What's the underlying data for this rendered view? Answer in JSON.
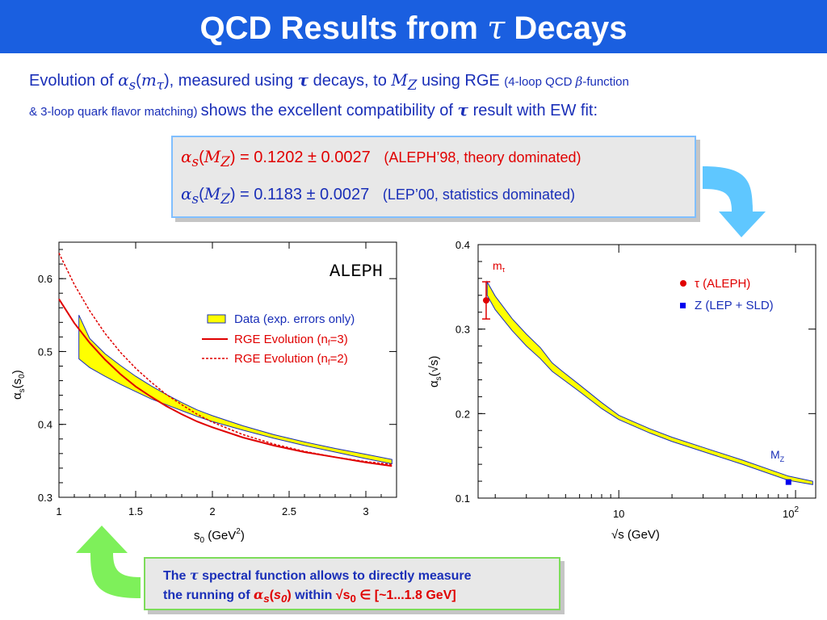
{
  "title": {
    "prefix": "QCD Results from ",
    "symbol": "τ",
    "suffix": " Decays"
  },
  "intro": {
    "t1": "Evolution of ",
    "t2": "α",
    "t3": "s",
    "t4": "(",
    "t5": "m",
    "t6": "τ",
    "t7": "), measured using ",
    "t8": "τ",
    "t9": " decays, to ",
    "t10": "M",
    "t11": "Z",
    "t12": " using RGE ",
    "t13": "(4-loop QCD ",
    "t14": "β",
    "t15": "-function",
    "t16": "& 3-loop quark flavor matching) ",
    "t17": "shows the excellent compatibility of ",
    "t18": "τ",
    "t19": " result with EW fit:"
  },
  "results": {
    "r1_a": "α",
    "r1_s": "s",
    "r1_open": "(",
    "r1_m": "M",
    "r1_z": "Z",
    "r1_value": ") = 0.1202 ± 0.0027",
    "r1_note": "(ALEPH’98, theory dominated)",
    "r2_a": "α",
    "r2_s": "s",
    "r2_open": "(",
    "r2_m": "M",
    "r2_z": "Z",
    "r2_value": ") = 0.1183 ± 0.0027",
    "r2_note": "(LEP’00, statistics dominated)"
  },
  "callout": {
    "l1a": "The ",
    "l1b": "τ",
    "l1c": " spectral function allows to directly measure",
    "l2a": "the running of ",
    "l2b": "α",
    "l2c": "s",
    "l2d": "(",
    "l2e": "s",
    "l2f": "0",
    "l2g": ")",
    "l2h": " within ",
    "l2i": "√s",
    "l2j": "0",
    "l2k": " ∈ [~1...1.8 GeV]"
  },
  "colors": {
    "title_bar": "#1a5fe0",
    "text_blue": "#1a2fb8",
    "text_red": "#e00000",
    "band_fill": "#ffff00",
    "curve_red": "#e00000",
    "arrow_blue": "#5fc7ff",
    "arrow_green": "#7ef05a",
    "box_border_blue": "#80bfff",
    "box_border_green": "#7ddc5a"
  },
  "chart_data": [
    {
      "type": "line",
      "experiment_label": "ALEPH",
      "xlabel": "s0 (GeV²)",
      "ylabel": "αs(s0)",
      "xlim": [
        1.0,
        3.2
      ],
      "ylim": [
        0.3,
        0.65
      ],
      "xticks": [
        "1",
        "1.5",
        "2",
        "2.5",
        "3"
      ],
      "yticks": [
        "0.3",
        "0.4",
        "0.5",
        "0.6"
      ],
      "legend": [
        "Data (exp. errors only)",
        "RGE Evolution (nf=3)",
        "RGE Evolution (nf=2)"
      ],
      "legend_position": "right",
      "series": [
        {
          "name": "Data (exp. errors only)",
          "style": "band",
          "x": [
            1.13,
            1.2,
            1.3,
            1.4,
            1.5,
            1.6,
            1.7,
            1.8,
            1.9,
            2.0,
            2.2,
            2.4,
            2.6,
            2.8,
            3.0,
            3.17
          ],
          "y_upper": [
            0.55,
            0.518,
            0.497,
            0.481,
            0.466,
            0.453,
            0.441,
            0.43,
            0.42,
            0.412,
            0.398,
            0.386,
            0.376,
            0.367,
            0.359,
            0.352
          ],
          "y_lower": [
            0.49,
            0.478,
            0.466,
            0.455,
            0.445,
            0.435,
            0.427,
            0.419,
            0.411,
            0.404,
            0.392,
            0.381,
            0.371,
            0.362,
            0.353,
            0.346
          ]
        },
        {
          "name": "RGE Evolution (nf=3)",
          "style": "solid",
          "x": [
            1.0,
            1.1,
            1.2,
            1.3,
            1.4,
            1.5,
            1.6,
            1.7,
            1.8,
            1.9,
            2.0,
            2.2,
            2.4,
            2.6,
            2.8,
            3.0,
            3.17
          ],
          "y": [
            0.572,
            0.539,
            0.512,
            0.489,
            0.469,
            0.452,
            0.438,
            0.425,
            0.414,
            0.404,
            0.396,
            0.382,
            0.371,
            0.362,
            0.355,
            0.348,
            0.343
          ]
        },
        {
          "name": "RGE Evolution (nf=2)",
          "style": "dashed",
          "x": [
            1.0,
            1.1,
            1.2,
            1.3,
            1.4,
            1.5,
            1.6,
            1.7,
            1.8,
            1.9,
            2.0,
            2.2,
            2.4,
            2.6,
            2.8,
            3.0,
            3.17
          ],
          "y": [
            0.635,
            0.592,
            0.556,
            0.525,
            0.499,
            0.477,
            0.458,
            0.441,
            0.427,
            0.414,
            0.403,
            0.386,
            0.373,
            0.363,
            0.355,
            0.349,
            0.345
          ]
        }
      ]
    },
    {
      "type": "line",
      "xlabel": "√s (GeV)",
      "ylabel": "αs(√s)",
      "xscale": "log",
      "xlim": [
        1.6,
        130
      ],
      "ylim": [
        0.1,
        0.4
      ],
      "xtick_labels": [
        "10",
        "10²"
      ],
      "yticks": [
        "0.1",
        "0.2",
        "0.3",
        "0.4"
      ],
      "legend": [
        "τ (ALEPH)",
        "Z (LEP + SLD)"
      ],
      "legend_position": "upper-right",
      "annotations": [
        "mτ",
        "MZ"
      ],
      "series": [
        {
          "name": "τ (ALEPH)",
          "style": "point-errorbar",
          "x": [
            1.777
          ],
          "y": [
            0.334
          ],
          "yerr": [
            0.022
          ]
        },
        {
          "name": "Z (LEP + SLD)",
          "style": "point",
          "x": [
            91.19
          ],
          "y": [
            0.119
          ]
        },
        {
          "name": "RGE evolution band",
          "style": "band",
          "x": [
            1.8,
            2.0,
            2.5,
            3.0,
            3.6,
            4.2,
            4.8,
            6.0,
            8.0,
            10.0,
            15.0,
            20.0,
            30.0,
            50.0,
            91.19,
            125.0
          ],
          "y_upper": [
            0.356,
            0.339,
            0.312,
            0.294,
            0.278,
            0.26,
            0.25,
            0.234,
            0.213,
            0.198,
            0.182,
            0.172,
            0.16,
            0.145,
            0.126,
            0.12
          ],
          "y_lower": [
            0.34,
            0.323,
            0.298,
            0.28,
            0.265,
            0.25,
            0.241,
            0.226,
            0.206,
            0.193,
            0.177,
            0.167,
            0.155,
            0.14,
            0.121,
            0.116
          ]
        }
      ]
    }
  ]
}
